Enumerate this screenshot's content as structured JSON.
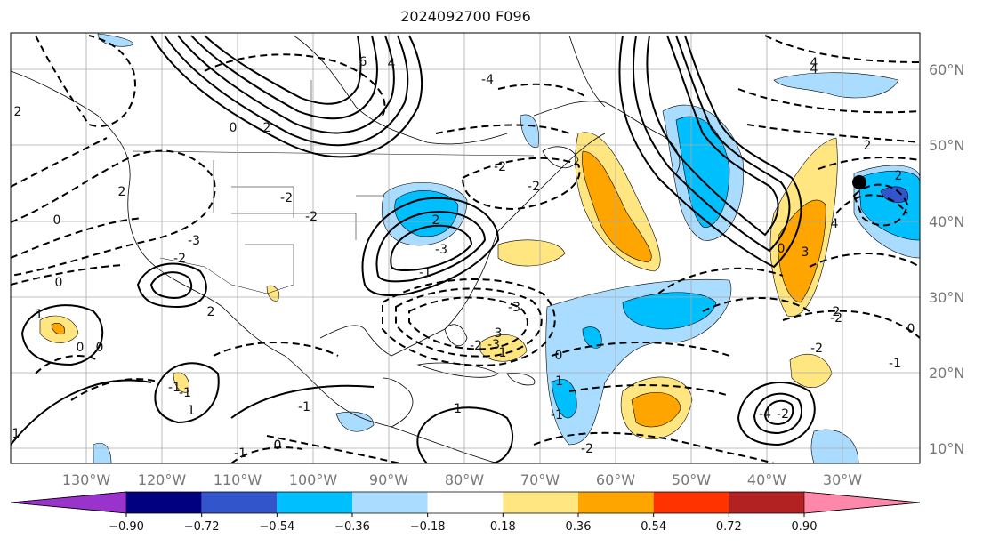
{
  "title": "2024092700 F096",
  "longitude_labels": [
    "130°W",
    "120°W",
    "110°W",
    "100°W",
    "90°W",
    "80°W",
    "70°W",
    "60°W",
    "50°W",
    "40°W",
    "30°W"
  ],
  "latitude_labels": [
    "60°N",
    "50°N",
    "40°N",
    "30°N",
    "20°N",
    "10°N"
  ],
  "map_extent": {
    "lon_min": -137,
    "lon_max": -25,
    "lat_min": 8,
    "lat_max": 65
  },
  "colorbar": {
    "levels": [
      "−0.90",
      "−0.72",
      "−0.54",
      "−0.36",
      "−0.18",
      "0.18",
      "0.36",
      "0.54",
      "0.72",
      "0.90"
    ],
    "colors": [
      "#9933cc",
      "#000080",
      "#3355cc",
      "#00bfff",
      "#aadcff",
      "#ffffff",
      "#ffe680",
      "#ffa500",
      "#ff3300",
      "#b22222",
      "#ff88aa"
    ]
  },
  "marker": {
    "lon": -28,
    "lat": 45,
    "color": "#000000"
  },
  "contour_labels": [
    "6",
    "4",
    "2",
    "0",
    "-2",
    "-4",
    "2",
    "-2",
    "-3",
    "4",
    "-2",
    "0",
    "2",
    "-2",
    "3",
    "-1",
    "-3",
    "-2",
    "0",
    "2",
    "4",
    "2",
    "3",
    "-2",
    "1",
    "0",
    "0",
    "-1",
    "-1",
    "1",
    "-4",
    "4",
    "2",
    "0",
    "-2",
    "1",
    "-1",
    "0",
    "-3",
    "-1",
    "-2",
    "-3",
    "1",
    "0",
    "2",
    "-2",
    "0",
    "-1",
    "-1",
    "-2",
    "-1",
    "2",
    "-1",
    "0"
  ]
}
